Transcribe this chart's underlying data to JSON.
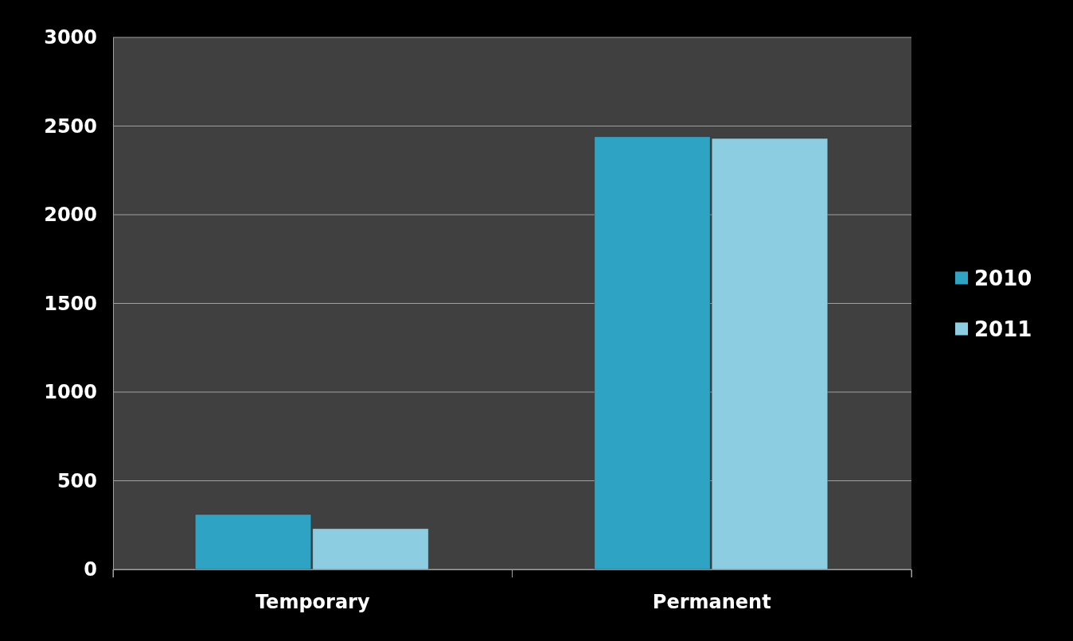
{
  "chart_data": {
    "type": "bar",
    "categories": [
      "Temporary",
      "Permanent"
    ],
    "series": [
      {
        "name": "2010",
        "color": "#2ea3c4",
        "values": [
          310,
          2440
        ]
      },
      {
        "name": "2011",
        "color": "#8ccde2",
        "values": [
          230,
          2430
        ]
      }
    ],
    "ylim": [
      0,
      3000
    ],
    "yticks": [
      0,
      500,
      1000,
      1500,
      2000,
      2500,
      3000
    ],
    "grid": "y",
    "legend": "right"
  }
}
